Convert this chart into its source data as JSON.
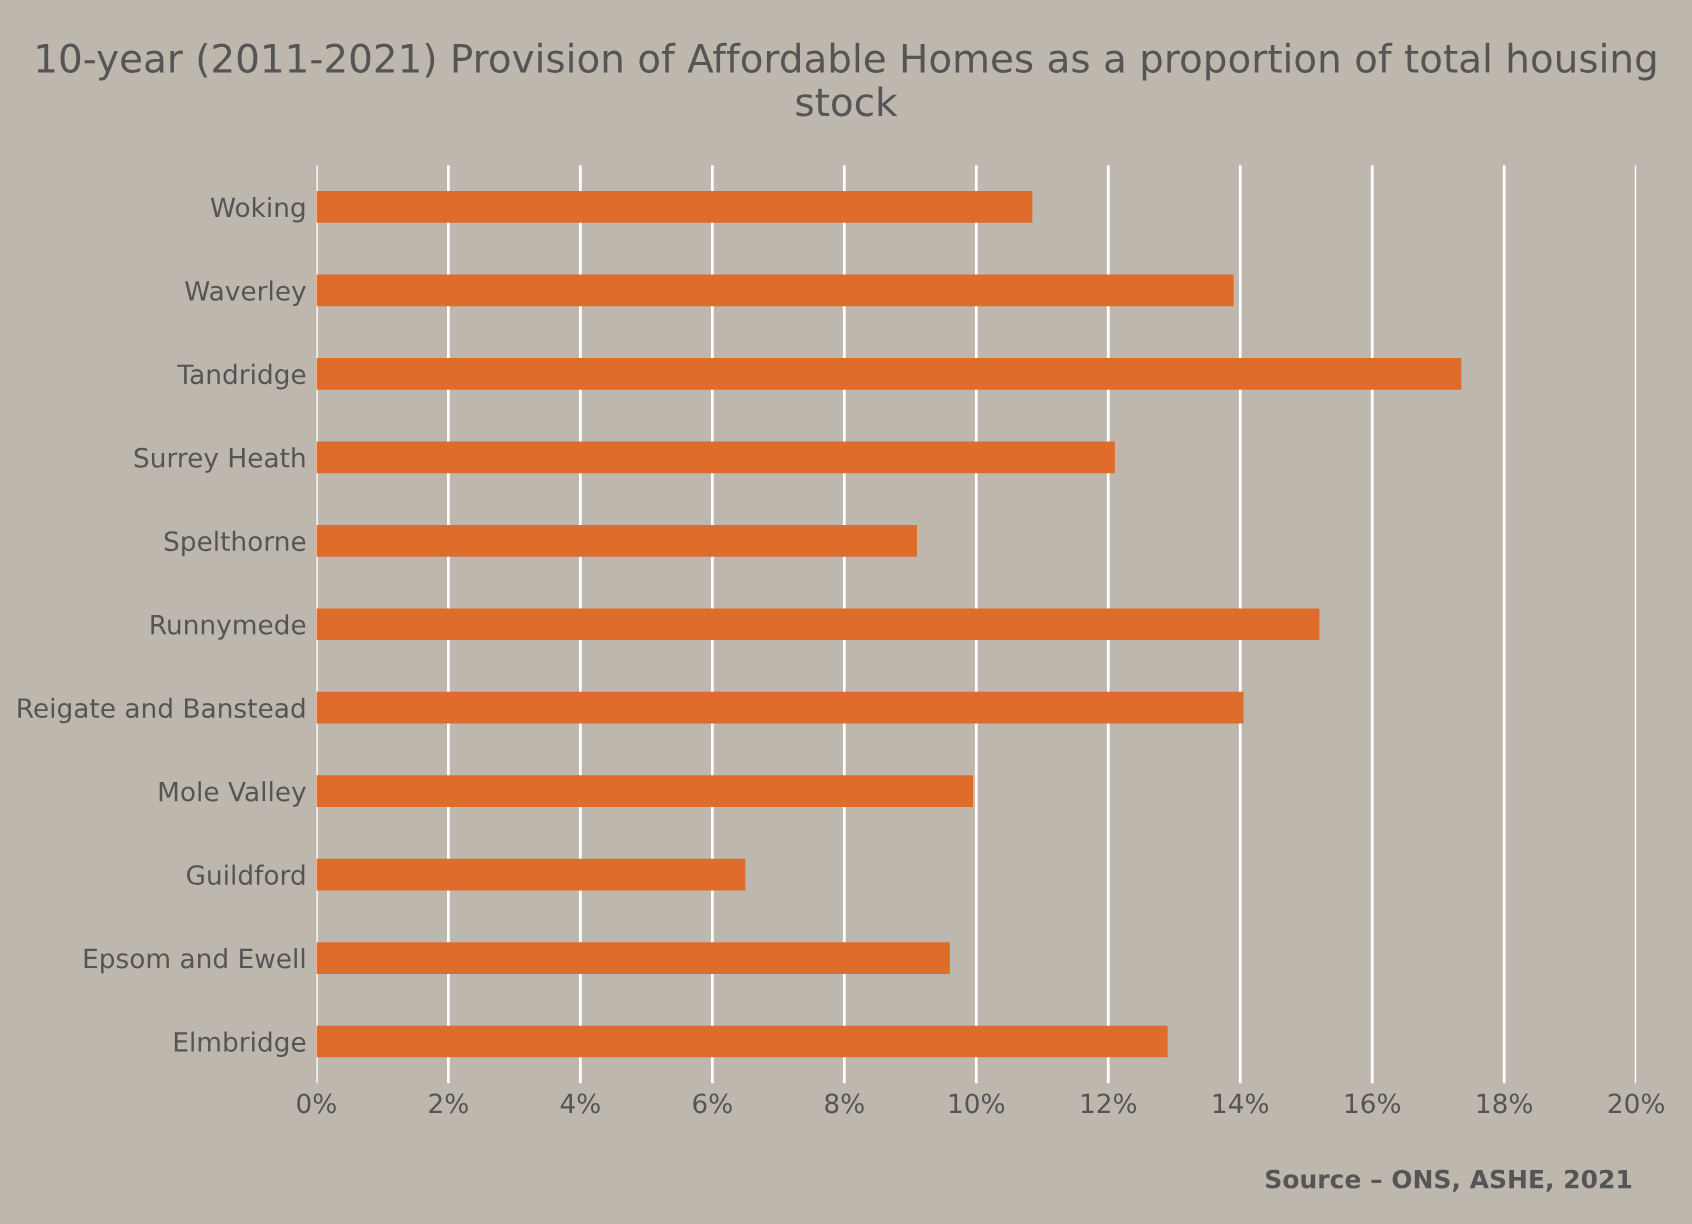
{
  "chart_data": {
    "type": "bar",
    "orientation": "horizontal",
    "title": "10-year (2011-2021) Provision of Affordable Homes as a proportion of total housing stock",
    "categories": [
      "Woking",
      "Waverley",
      "Tandridge",
      "Surrey Heath",
      "Spelthorne",
      "Runnymede",
      "Reigate and Banstead",
      "Mole Valley",
      "Guildford",
      "Epsom and Ewell",
      "Elmbridge"
    ],
    "values": [
      10.85,
      13.9,
      17.35,
      12.1,
      9.1,
      15.2,
      14.05,
      9.95,
      6.5,
      9.6,
      12.9
    ],
    "color": "#e06c2c",
    "xlim": [
      0,
      20
    ],
    "xticks": [
      {
        "value": 0,
        "label": "0%"
      },
      {
        "value": 2,
        "label": "2%"
      },
      {
        "value": 4,
        "label": "4%"
      },
      {
        "value": 6,
        "label": "6%"
      },
      {
        "value": 8,
        "label": "8%"
      },
      {
        "value": 10,
        "label": "10%"
      },
      {
        "value": 12,
        "label": "12%"
      },
      {
        "value": 14,
        "label": "14%"
      },
      {
        "value": 16,
        "label": "16%"
      },
      {
        "value": 18,
        "label": "18%"
      },
      {
        "value": 20,
        "label": "20%"
      }
    ],
    "grid": "x",
    "annotations": [
      "Source – ONS, ASHE, 2021"
    ]
  }
}
